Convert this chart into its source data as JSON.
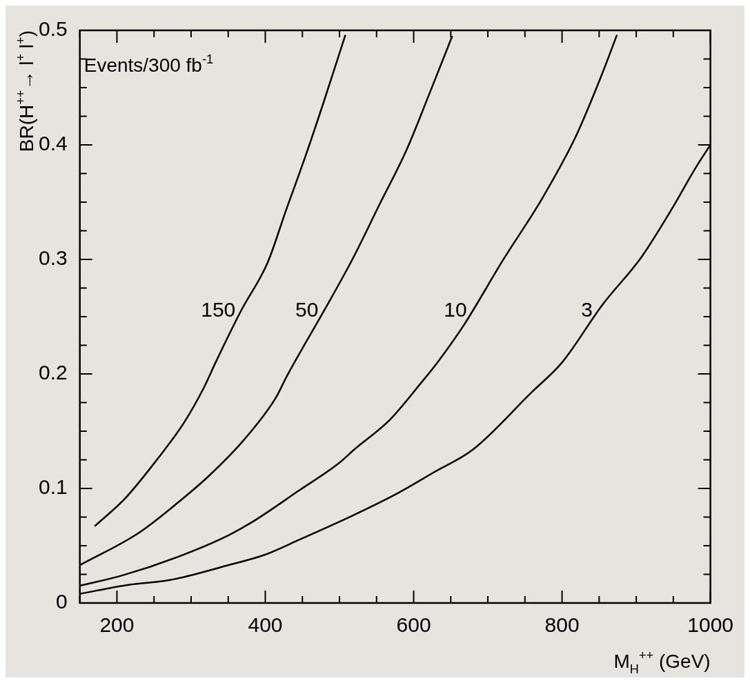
{
  "chart_data": {
    "type": "line",
    "xlabel": "M$_{H}$$^{++}$ (GeV)",
    "ylabel": "BR(H$^{++}$→ l$^{+}$ l$^{+}$)",
    "annotations": [
      "Events/300 fb$^{-1}$"
    ],
    "xlim": [
      150,
      1000
    ],
    "ylim": [
      0,
      0.5
    ],
    "xticks": [
      {
        "value": 150,
        "label": null
      },
      200,
      {
        "value": 250,
        "label": null
      },
      {
        "value": 300,
        "label": null
      },
      {
        "value": 350,
        "label": null
      },
      400,
      {
        "value": 450,
        "label": null
      },
      {
        "value": 500,
        "label": null
      },
      {
        "value": 550,
        "label": null
      },
      600,
      {
        "value": 650,
        "label": null
      },
      {
        "value": 700,
        "label": null
      },
      {
        "value": 750,
        "label": null
      },
      800,
      {
        "value": 850,
        "label": null
      },
      {
        "value": 900,
        "label": null
      },
      {
        "value": 950,
        "label": null
      },
      1000
    ],
    "yticks": [
      0,
      {
        "value": 0.025,
        "label": null
      },
      {
        "value": 0.05,
        "label": null
      },
      {
        "value": 0.075,
        "label": null
      },
      0.1,
      {
        "value": 0.125,
        "label": null
      },
      {
        "value": 0.15,
        "label": null
      },
      {
        "value": 0.175,
        "label": null
      },
      0.2,
      {
        "value": 0.225,
        "label": null
      },
      {
        "value": 0.25,
        "label": null
      },
      {
        "value": 0.275,
        "label": null
      },
      0.3,
      {
        "value": 0.325,
        "label": null
      },
      {
        "value": 0.35,
        "label": null
      },
      {
        "value": 0.375,
        "label": null
      },
      0.4,
      {
        "value": 0.425,
        "label": null
      },
      {
        "value": 0.45,
        "label": null
      },
      {
        "value": 0.475,
        "label": null
      },
      0.5
    ],
    "grid": false,
    "legend": false,
    "marker": "none",
    "line_style": "solid",
    "series": [
      {
        "name": "150",
        "color": "#000000",
        "x": [
          170,
          212,
          255,
          290,
          318,
          333,
          368,
          403,
          428,
          453,
          478,
          508
        ],
        "values": [
          0.067,
          0.092,
          0.126,
          0.157,
          0.189,
          0.21,
          0.256,
          0.297,
          0.343,
          0.388,
          0.436,
          0.496
        ]
      },
      {
        "name": "50",
        "color": "#000000",
        "x": [
          150,
          229,
          281,
          324,
          372,
          414,
          429,
          479,
          519,
          554,
          590,
          622,
          652
        ],
        "values": [
          0.033,
          0.061,
          0.087,
          0.111,
          0.143,
          0.179,
          0.198,
          0.255,
          0.302,
          0.348,
          0.395,
          0.446,
          0.495
        ]
      },
      {
        "name": "10",
        "color": "#000000",
        "x": [
          150,
          207,
          281,
          350,
          388,
          445,
          499,
          520,
          568,
          611,
          632,
          668,
          720,
          773,
          819,
          854,
          874
        ],
        "values": [
          0.015,
          0.024,
          0.04,
          0.059,
          0.073,
          0.098,
          0.122,
          0.134,
          0.16,
          0.193,
          0.21,
          0.243,
          0.299,
          0.353,
          0.408,
          0.462,
          0.496
        ]
      },
      {
        "name": "3",
        "color": "#000000",
        "x": [
          150,
          217,
          271,
          350,
          399,
          445,
          520,
          579,
          627,
          680,
          759,
          800,
          854,
          907,
          947,
          981,
          1000
        ],
        "values": [
          0.008,
          0.016,
          0.02,
          0.033,
          0.042,
          0.055,
          0.077,
          0.096,
          0.114,
          0.134,
          0.184,
          0.21,
          0.26,
          0.302,
          0.343,
          0.381,
          0.4
        ]
      }
    ]
  }
}
